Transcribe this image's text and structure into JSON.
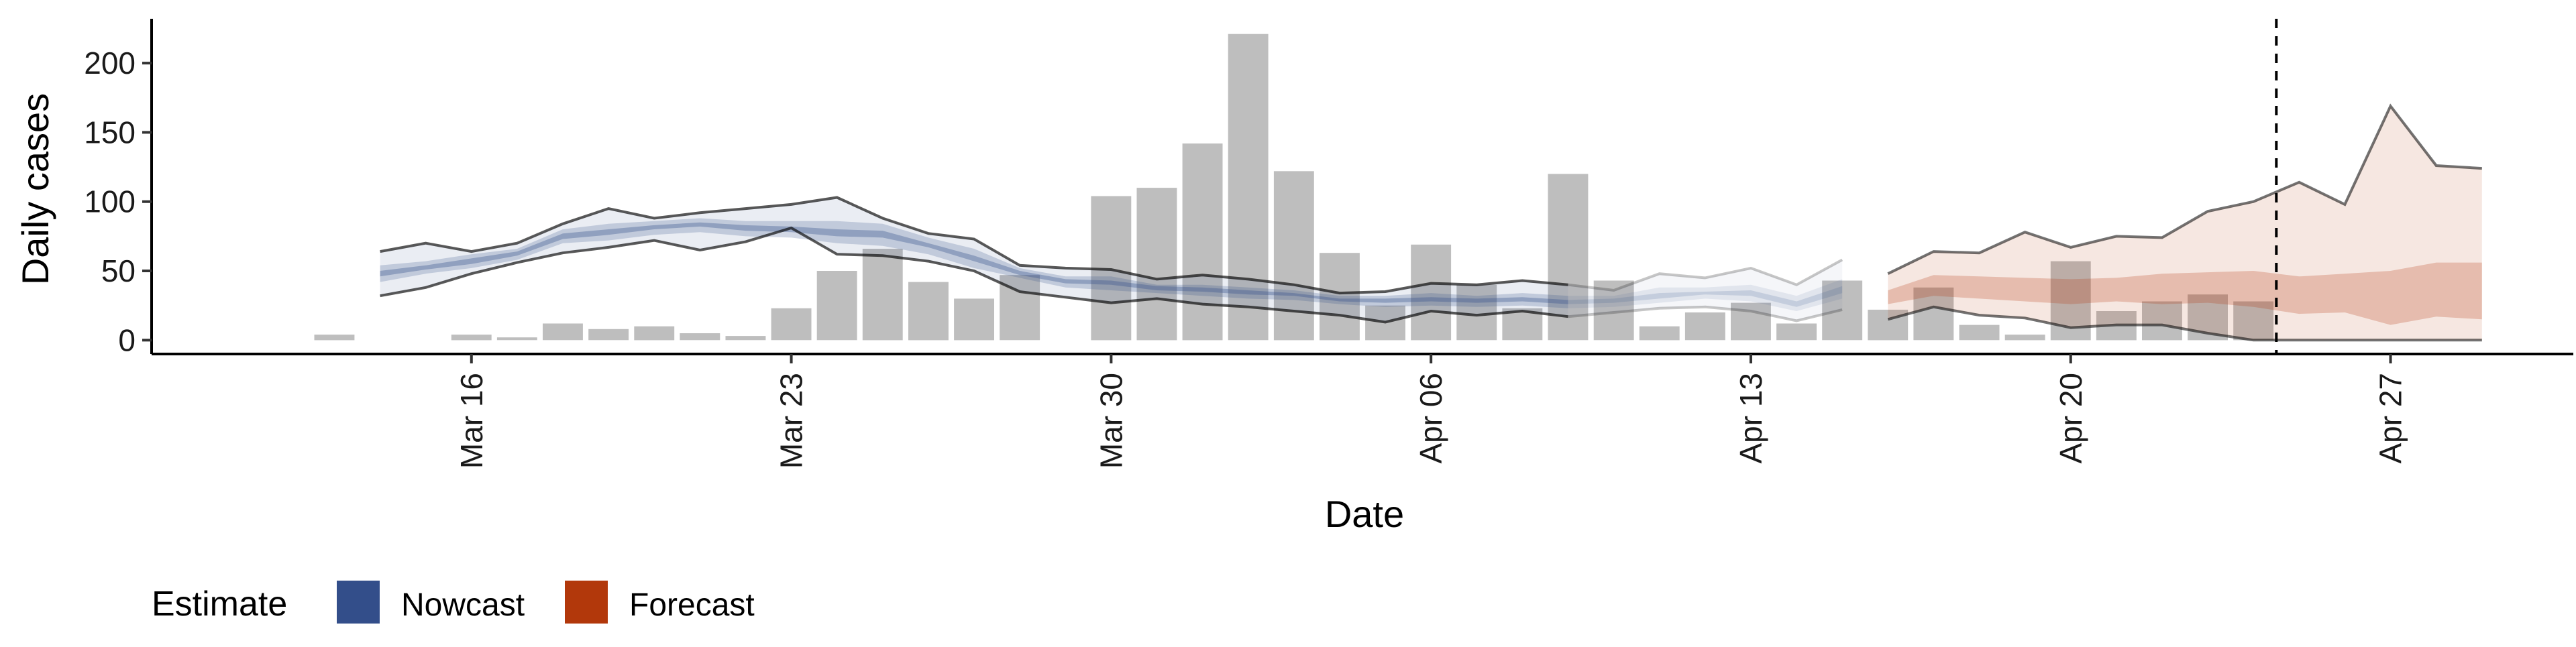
{
  "chart_data": {
    "type": "bar",
    "xlabel": "Date",
    "ylabel": "Daily cases",
    "ylim": [
      -10,
      232
    ],
    "yticks": [
      0,
      50,
      100,
      150,
      200
    ],
    "x_range": [
      "2020-03-09",
      "2020-05-01"
    ],
    "xticks": [
      {
        "date": "2020-03-16",
        "label": "Mar 16"
      },
      {
        "date": "2020-03-23",
        "label": "Mar 23"
      },
      {
        "date": "2020-03-30",
        "label": "Mar 30"
      },
      {
        "date": "2020-04-06",
        "label": "Apr 06"
      },
      {
        "date": "2020-04-13",
        "label": "Apr 13"
      },
      {
        "date": "2020-04-20",
        "label": "Apr 20"
      },
      {
        "date": "2020-04-27",
        "label": "Apr 27"
      }
    ],
    "bar_dates": [
      "2020-03-13",
      "2020-03-14",
      "2020-03-15",
      "2020-03-16",
      "2020-03-17",
      "2020-03-18",
      "2020-03-19",
      "2020-03-20",
      "2020-03-21",
      "2020-03-22",
      "2020-03-23",
      "2020-03-24",
      "2020-03-25",
      "2020-03-26",
      "2020-03-27",
      "2020-03-28",
      "2020-03-29",
      "2020-03-30",
      "2020-03-31",
      "2020-04-01",
      "2020-04-02",
      "2020-04-03",
      "2020-04-04",
      "2020-04-05",
      "2020-04-06",
      "2020-04-07",
      "2020-04-08",
      "2020-04-09",
      "2020-04-10",
      "2020-04-11",
      "2020-04-12",
      "2020-04-13",
      "2020-04-14",
      "2020-04-15",
      "2020-04-16",
      "2020-04-17",
      "2020-04-18",
      "2020-04-19",
      "2020-04-20",
      "2020-04-21",
      "2020-04-22",
      "2020-04-23",
      "2020-04-24"
    ],
    "bar_values": [
      4,
      0,
      0,
      4,
      2,
      12,
      8,
      10,
      5,
      3,
      23,
      50,
      66,
      42,
      30,
      47,
      0,
      104,
      110,
      142,
      221,
      122,
      63,
      25,
      69,
      40,
      23,
      120,
      43,
      10,
      20,
      27,
      12,
      43,
      22,
      38,
      11,
      4,
      57,
      21,
      28,
      33,
      28
    ],
    "forecast_date": "2020-04-24",
    "series": [
      {
        "name": "Nowcast",
        "color": "#334e8a",
        "dates": [
          "2020-03-14",
          "2020-03-15",
          "2020-03-16",
          "2020-03-17",
          "2020-03-18",
          "2020-03-19",
          "2020-03-20",
          "2020-03-21",
          "2020-03-22",
          "2020-03-23",
          "2020-03-24",
          "2020-03-25",
          "2020-03-26",
          "2020-03-27",
          "2020-03-28",
          "2020-03-29",
          "2020-03-30",
          "2020-03-31",
          "2020-04-01",
          "2020-04-02",
          "2020-04-03",
          "2020-04-04",
          "2020-04-05",
          "2020-04-06",
          "2020-04-07",
          "2020-04-08",
          "2020-04-09",
          "2020-04-10",
          "2020-04-11",
          "2020-04-12",
          "2020-04-13",
          "2020-04-14",
          "2020-04-15"
        ],
        "lower_90": [
          32,
          38,
          48,
          56,
          63,
          67,
          72,
          65,
          71,
          81,
          62,
          61,
          57,
          50,
          35,
          31,
          27,
          30,
          26,
          24,
          21,
          18,
          13,
          21,
          18,
          21,
          17,
          20,
          23,
          24,
          21,
          14,
          22
        ],
        "upper_90": [
          64,
          70,
          64,
          70,
          84,
          95,
          88,
          92,
          95,
          98,
          103,
          88,
          77,
          73,
          54,
          52,
          51,
          44,
          47,
          44,
          40,
          34,
          35,
          41,
          40,
          43,
          40,
          36,
          48,
          45,
          52,
          40,
          58
        ],
        "lower_50": [
          42,
          48,
          52,
          58,
          70,
          72,
          76,
          78,
          75,
          74,
          70,
          68,
          62,
          52,
          45,
          38,
          36,
          34,
          32,
          30,
          29,
          26,
          24,
          25,
          24,
          25,
          23,
          24,
          27,
          30,
          28,
          21,
          30
        ],
        "upper_50": [
          54,
          57,
          62,
          66,
          80,
          84,
          86,
          88,
          86,
          86,
          86,
          84,
          74,
          66,
          52,
          46,
          46,
          40,
          40,
          38,
          36,
          32,
          32,
          34,
          32,
          34,
          32,
          32,
          38,
          38,
          40,
          32,
          44
        ],
        "lower_20": [
          46,
          51,
          55,
          61,
          73,
          76,
          80,
          82,
          79,
          78,
          75,
          74,
          67,
          57,
          47,
          41,
          40,
          36,
          35,
          33,
          32,
          28,
          27,
          28,
          27,
          28,
          26,
          27,
          30,
          33,
          32,
          24,
          34
        ],
        "upper_20": [
          50,
          54,
          59,
          64,
          77,
          80,
          83,
          85,
          83,
          82,
          80,
          79,
          70,
          61,
          50,
          44,
          43,
          39,
          38,
          36,
          34,
          30,
          30,
          31,
          30,
          31,
          29,
          30,
          34,
          35,
          36,
          28,
          39
        ]
      },
      {
        "name": "Forecast",
        "color": "#b2380b",
        "dates": [
          "2020-04-16",
          "2020-04-17",
          "2020-04-18",
          "2020-04-19",
          "2020-04-20",
          "2020-04-21",
          "2020-04-22",
          "2020-04-23",
          "2020-04-24",
          "2020-04-25",
          "2020-04-26",
          "2020-04-27",
          "2020-04-28",
          "2020-04-29"
        ],
        "lower_90": [
          15,
          24,
          18,
          16,
          9,
          11,
          11,
          5,
          0,
          0,
          0,
          0,
          0,
          0
        ],
        "upper_90": [
          48,
          64,
          63,
          78,
          67,
          75,
          74,
          93,
          100,
          114,
          98,
          169,
          126,
          124
        ],
        "lower_50": [
          26,
          32,
          30,
          28,
          26,
          28,
          26,
          27,
          24,
          19,
          20,
          11,
          17,
          15
        ],
        "upper_50": [
          36,
          47,
          46,
          45,
          44,
          45,
          48,
          49,
          50,
          46,
          48,
          50,
          56,
          56
        ]
      }
    ],
    "legend": {
      "title": "Estimate",
      "entries": [
        "Nowcast",
        "Forecast"
      ],
      "position": "bottom-left"
    },
    "grid": false
  }
}
